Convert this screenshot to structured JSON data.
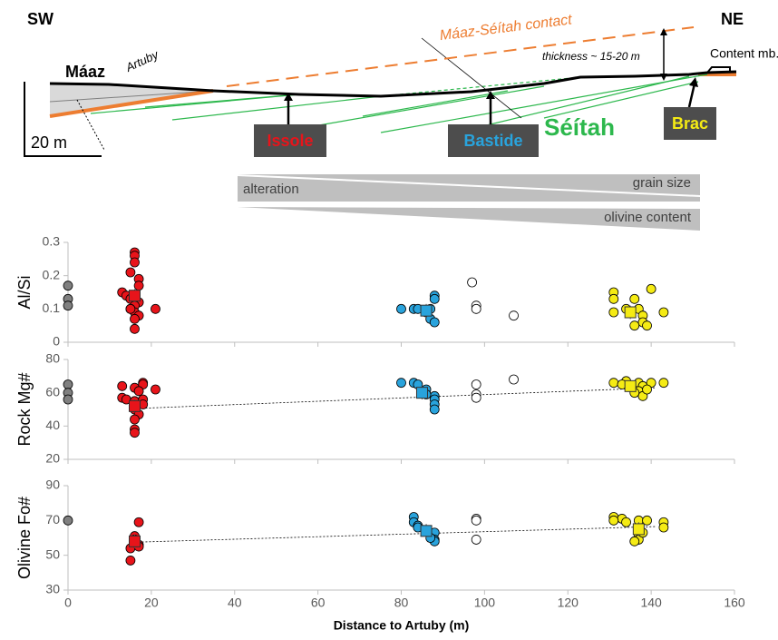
{
  "diagram": {
    "left_label": "SW",
    "right_label": "NE",
    "unit_maaz": "Máaz",
    "artuby": "Artuby",
    "contact": "Máaz-Séítah contact",
    "thickness": "thickness ~ 15-20 m",
    "content": "Content mb.",
    "issole": "Issole",
    "bastide": "Bastide",
    "seitah": "Séítah",
    "brac": "Brac",
    "scale": "20 m",
    "alteration": "alteration",
    "grain_size": "grain size",
    "olivine_content": "olivine content"
  },
  "chart_data": [
    {
      "type": "scatter",
      "ylabel": "Al/Si",
      "xlim": [
        0,
        160
      ],
      "xticks": [
        0,
        20,
        40,
        60,
        80,
        100,
        120,
        140,
        160
      ],
      "ylim": [
        0,
        0.3
      ],
      "yticks": [
        0,
        0.1,
        0.2,
        0.3
      ],
      "series": [
        {
          "color": "#808080",
          "marker": "circle",
          "x": [
            0,
            0,
            0
          ],
          "values": [
            0.17,
            0.13,
            0.11
          ]
        },
        {
          "color": "#e8141a",
          "marker": "circle",
          "x": [
            16,
            16,
            16,
            15,
            17,
            17,
            13,
            14,
            16,
            15,
            17,
            16,
            15,
            16,
            17,
            16,
            15,
            16,
            21
          ],
          "values": [
            0.27,
            0.26,
            0.24,
            0.21,
            0.19,
            0.17,
            0.15,
            0.14,
            0.14,
            0.13,
            0.12,
            0.11,
            0.1,
            0.09,
            0.08,
            0.07,
            0.1,
            0.04,
            0.1
          ]
        },
        {
          "color": "#29a3dc",
          "marker": "circle",
          "x": [
            80,
            83,
            84,
            86,
            88,
            88,
            87,
            88,
            87
          ],
          "values": [
            0.1,
            0.1,
            0.1,
            0.09,
            0.14,
            0.13,
            0.07,
            0.06,
            0.1
          ]
        },
        {
          "color": "#ffffff",
          "marker": "circle",
          "x": [
            97,
            98,
            98,
            107
          ],
          "values": [
            0.18,
            0.11,
            0.1,
            0.08
          ]
        },
        {
          "color": "#f5eb14",
          "marker": "circle",
          "x": [
            131,
            131,
            136,
            140,
            134,
            137,
            138,
            138,
            136,
            139,
            143,
            131
          ],
          "values": [
            0.15,
            0.13,
            0.13,
            0.16,
            0.1,
            0.1,
            0.08,
            0.06,
            0.05,
            0.05,
            0.09,
            0.09
          ]
        },
        {
          "color": "#e8141a",
          "marker": "square",
          "x": [
            16
          ],
          "values": [
            0.14
          ],
          "errors": [
            0.02
          ]
        },
        {
          "color": "#29a3dc",
          "marker": "square",
          "x": [
            86
          ],
          "values": [
            0.095
          ],
          "errors": [
            0.02
          ]
        },
        {
          "color": "#f5eb14",
          "marker": "square",
          "x": [
            135
          ],
          "values": [
            0.09
          ],
          "errors": [
            0.02
          ]
        }
      ]
    },
    {
      "type": "scatter",
      "ylabel": "Rock Mg#",
      "xlim": [
        0,
        160
      ],
      "xticks": [
        0,
        20,
        40,
        60,
        80,
        100,
        120,
        140,
        160
      ],
      "ylim": [
        20,
        80
      ],
      "yticks": [
        20,
        40,
        60,
        80
      ],
      "series": [
        {
          "color": "#808080",
          "marker": "circle",
          "x": [
            0,
            0,
            0
          ],
          "values": [
            65,
            60,
            56
          ]
        },
        {
          "color": "#e8141a",
          "marker": "circle",
          "x": [
            13,
            16,
            18,
            18,
            13,
            14,
            16,
            18,
            16,
            17,
            16,
            16,
            16,
            17,
            21,
            18
          ],
          "values": [
            64,
            63,
            66,
            65,
            57,
            56,
            55,
            56,
            50,
            47,
            44,
            38,
            36,
            61,
            62,
            53
          ]
        },
        {
          "color": "#29a3dc",
          "marker": "circle",
          "x": [
            80,
            83,
            84,
            86,
            88,
            88,
            88,
            88,
            86
          ],
          "values": [
            66,
            66,
            65,
            62,
            58,
            56,
            53,
            50,
            59
          ]
        },
        {
          "color": "#ffffff",
          "marker": "circle",
          "x": [
            98,
            98,
            98,
            107
          ],
          "values": [
            65,
            59,
            57,
            68
          ]
        },
        {
          "color": "#f5eb14",
          "marker": "circle",
          "x": [
            131,
            134,
            137,
            138,
            140,
            143,
            137,
            138,
            136,
            133,
            139
          ],
          "values": [
            66,
            67,
            66,
            64,
            66,
            66,
            61,
            58,
            60,
            65,
            62
          ]
        },
        {
          "color": "#e8141a",
          "marker": "square",
          "x": [
            16
          ],
          "values": [
            52
          ],
          "errors": [
            4
          ]
        },
        {
          "color": "#29a3dc",
          "marker": "square",
          "x": [
            85
          ],
          "values": [
            60
          ],
          "errors": [
            4
          ]
        },
        {
          "color": "#f5eb14",
          "marker": "square",
          "x": [
            135
          ],
          "values": [
            64
          ],
          "errors": [
            3
          ]
        }
      ],
      "trendline": {
        "x": [
          16,
          141
        ],
        "values": [
          50.5,
          63
        ]
      }
    },
    {
      "type": "scatter",
      "ylabel": "Olivine Fo#",
      "xlabel": "Distance to Artuby (m)",
      "xlim": [
        0,
        160
      ],
      "xticks": [
        0,
        20,
        40,
        60,
        80,
        100,
        120,
        140,
        160
      ],
      "ylim": [
        30,
        90
      ],
      "yticks": [
        30,
        50,
        70,
        90
      ],
      "series": [
        {
          "color": "#808080",
          "marker": "circle",
          "x": [
            0
          ],
          "values": [
            70
          ]
        },
        {
          "color": "#e8141a",
          "marker": "circle",
          "x": [
            17,
            16,
            16,
            17,
            15,
            16,
            15,
            17
          ],
          "values": [
            69,
            61,
            58,
            56,
            54,
            59,
            47,
            55
          ]
        },
        {
          "color": "#29a3dc",
          "marker": "circle",
          "x": [
            83,
            83,
            84,
            88,
            88,
            88,
            87,
            84
          ],
          "values": [
            72,
            69,
            67,
            63,
            59,
            58,
            60,
            66
          ]
        },
        {
          "color": "#ffffff",
          "marker": "circle",
          "x": [
            98,
            98,
            98
          ],
          "values": [
            71,
            70,
            59
          ]
        },
        {
          "color": "#f5eb14",
          "marker": "circle",
          "x": [
            131,
            133,
            134,
            137,
            139,
            143,
            143,
            137,
            137,
            136,
            138,
            131
          ],
          "values": [
            72,
            71,
            69,
            70,
            70,
            69,
            66,
            61,
            59,
            58,
            63,
            70
          ]
        },
        {
          "color": "#e8141a",
          "marker": "square",
          "x": [
            16
          ],
          "values": [
            58
          ],
          "errors": [
            4
          ]
        },
        {
          "color": "#29a3dc",
          "marker": "square",
          "x": [
            86
          ],
          "values": [
            64
          ],
          "errors": [
            4
          ]
        },
        {
          "color": "#f5eb14",
          "marker": "square",
          "x": [
            137
          ],
          "values": [
            65
          ],
          "errors": [
            4
          ]
        }
      ],
      "trendline": {
        "x": [
          16,
          141
        ],
        "values": [
          57.5,
          66.5
        ]
      }
    }
  ]
}
